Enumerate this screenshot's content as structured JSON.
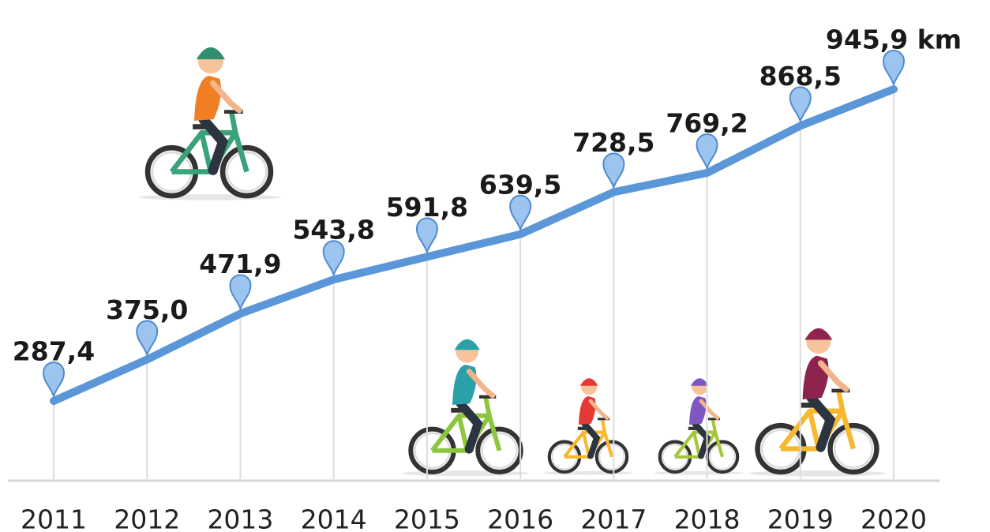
{
  "chart_data": {
    "type": "line",
    "categories": [
      "2011",
      "2012",
      "2013",
      "2014",
      "2015",
      "2016",
      "2017",
      "2018",
      "2019",
      "2020"
    ],
    "values": [
      287.4,
      375.0,
      471.9,
      543.8,
      591.8,
      639.5,
      728.5,
      769.2,
      868.5,
      945.9
    ],
    "value_labels": [
      "287,4",
      "375,0",
      "471,9",
      "543,8",
      "591,8",
      "639,5",
      "728,5",
      "769,2",
      "868,5",
      "945,9 km"
    ],
    "color": "#5b97d8"
  }
}
